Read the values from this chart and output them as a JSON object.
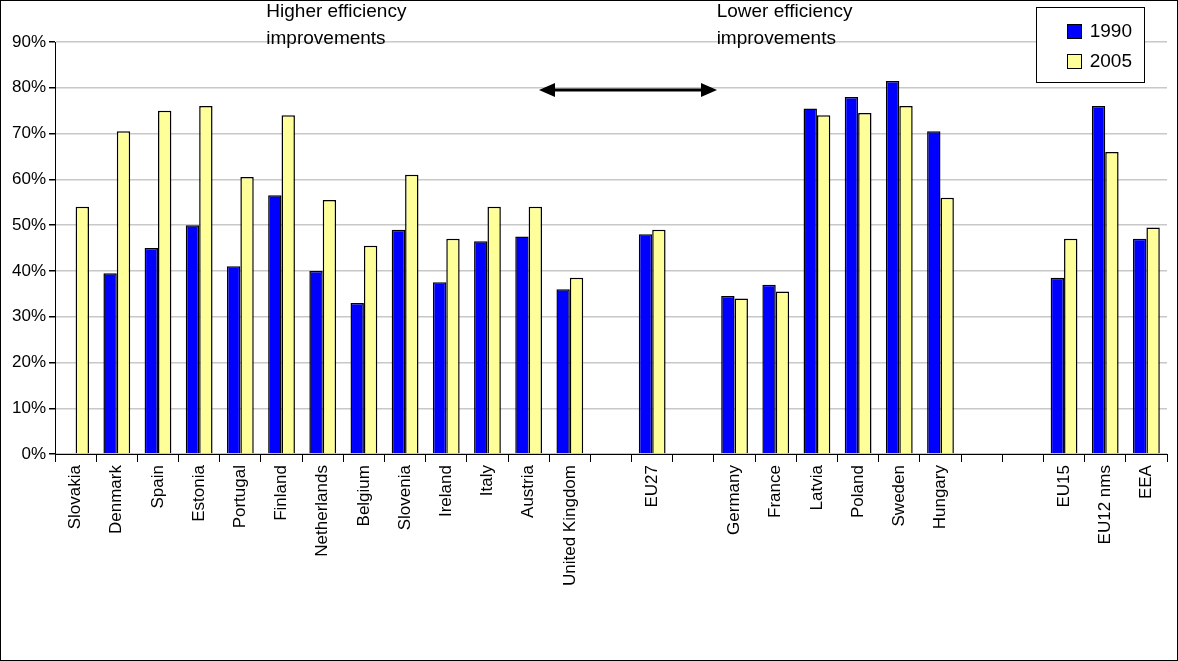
{
  "chart_data": {
    "type": "bar",
    "categories": [
      "Slovakia",
      "Denmark",
      "Spain",
      "Estonia",
      "Portugal",
      "Finland",
      "Netherlands",
      "Belgium",
      "Slovenia",
      "Ireland",
      "Italy",
      "Austria",
      "United Kingdom",
      null,
      "EU27",
      null,
      "Germany",
      "France",
      "Latvia",
      "Poland",
      "Sweden",
      "Hungary",
      null,
      null,
      "EU15",
      "EU12 nms",
      "EEA"
    ],
    "series": [
      {
        "name": "1990",
        "color": "#0000ff",
        "values": [
          null,
          39.5,
          45,
          50,
          41,
          56.5,
          40,
          33,
          49,
          37.5,
          46.5,
          47.5,
          36,
          null,
          48,
          null,
          34.5,
          37,
          75.5,
          78,
          81.5,
          70.5,
          null,
          null,
          38.5,
          76,
          47
        ]
      },
      {
        "name": "2005",
        "color": "#ffff99",
        "values": [
          54,
          70.5,
          75,
          76,
          60.5,
          74,
          55.5,
          45.5,
          61,
          47,
          54,
          54,
          38.5,
          null,
          49,
          null,
          34,
          35.5,
          74,
          74.5,
          76,
          56,
          null,
          null,
          47,
          66,
          49.5
        ]
      }
    ],
    "ylim": [
      0,
      90
    ],
    "yticks": [
      {
        "value": 0,
        "label": "0%"
      },
      {
        "value": 10,
        "label": "10%"
      },
      {
        "value": 20,
        "label": "20%"
      },
      {
        "value": 30,
        "label": "30%"
      },
      {
        "value": 40,
        "label": "40%"
      },
      {
        "value": 50,
        "label": "50%"
      },
      {
        "value": 60,
        "label": "60%"
      },
      {
        "value": 70,
        "label": "70%"
      },
      {
        "value": 80,
        "label": "80%"
      },
      {
        "value": 90,
        "label": "90%"
      }
    ],
    "annotations": [
      "Higher efficiency\nimprovements",
      "Lower efficiency\nimprovements"
    ],
    "grid": "y",
    "legend": "top right"
  }
}
